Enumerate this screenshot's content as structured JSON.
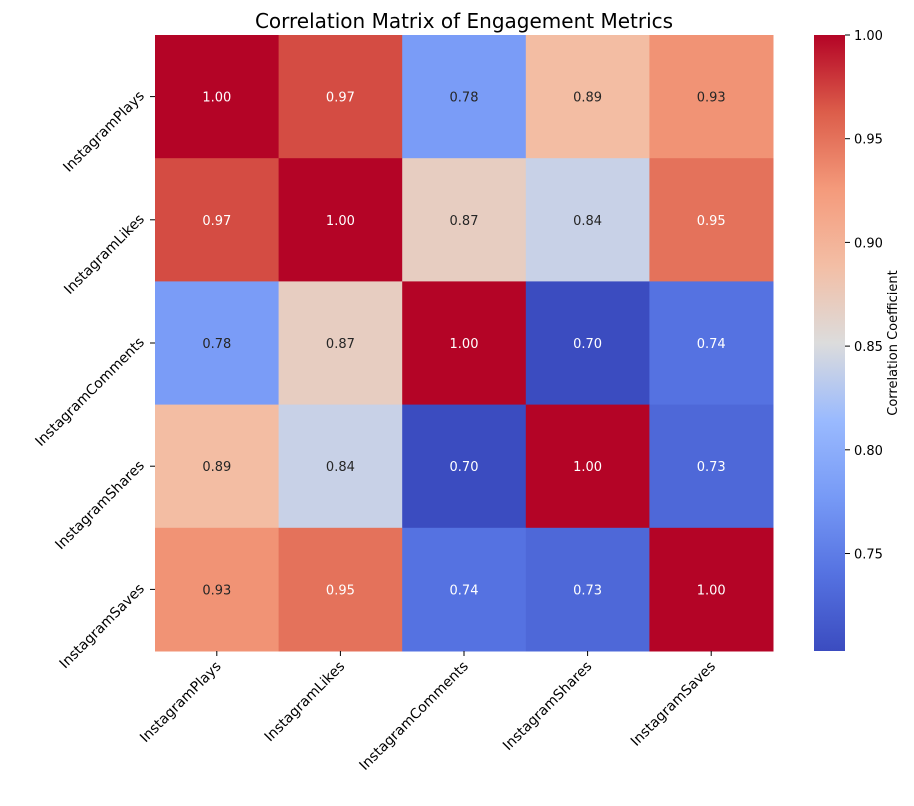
{
  "chart_data": {
    "type": "heatmap",
    "title": "Correlation Matrix of Engagement Metrics",
    "x_labels": [
      "InstagramPlays",
      "InstagramLikes",
      "InstagramComments",
      "InstagramShares",
      "InstagramSaves"
    ],
    "y_labels": [
      "InstagramPlays",
      "InstagramLikes",
      "InstagramComments",
      "InstagramShares",
      "InstagramSaves"
    ],
    "values": [
      [
        1.0,
        0.97,
        0.78,
        0.89,
        0.93
      ],
      [
        0.97,
        1.0,
        0.87,
        0.84,
        0.95
      ],
      [
        0.78,
        0.87,
        1.0,
        0.7,
        0.74
      ],
      [
        0.89,
        0.84,
        0.7,
        1.0,
        0.73
      ],
      [
        0.93,
        0.95,
        0.74,
        0.73,
        1.0
      ]
    ],
    "value_format": "0.00",
    "colormap": "coolwarm",
    "colorbar": {
      "label": "Correlation Coefficient",
      "range": [
        0.703,
        1.0
      ],
      "ticks": [
        "0.75",
        "0.80",
        "0.85",
        "0.90",
        "0.95",
        "1.00"
      ]
    },
    "grid": false
  }
}
